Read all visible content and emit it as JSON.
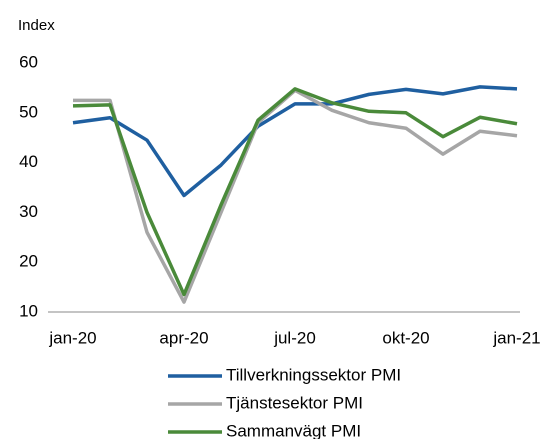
{
  "chart_data": {
    "type": "line",
    "y_label": "Index",
    "categories": [
      "jan-20",
      null,
      null,
      "apr-20",
      null,
      null,
      "jul-20",
      null,
      null,
      "okt-20",
      null,
      null,
      "jan-21"
    ],
    "series": [
      {
        "name": "Tillverkningssektor PMI",
        "color": "#1f5fa0",
        "values": [
          48,
          49,
          44.5,
          33.4,
          39.5,
          47.3,
          51.8,
          51.8,
          53.7,
          54.7,
          53.8,
          55.2,
          54.8
        ]
      },
      {
        "name": "Tjänstesektor PMI",
        "color": "#a6a6a6",
        "values": [
          52.5,
          52.5,
          26,
          12,
          30,
          48,
          54.5,
          50.5,
          48,
          46.9,
          41.7,
          46.3,
          45.4
        ]
      },
      {
        "name": "Sammanvägt PMI",
        "color": "#4a8a3a",
        "values": [
          51.4,
          51.6,
          30,
          13.5,
          31.5,
          48.5,
          54.8,
          52,
          50.3,
          50,
          45.2,
          49.1,
          47.8
        ]
      }
    ],
    "ylim": [
      10,
      60
    ],
    "yticks": [
      10,
      20,
      30,
      40,
      50,
      60
    ]
  }
}
